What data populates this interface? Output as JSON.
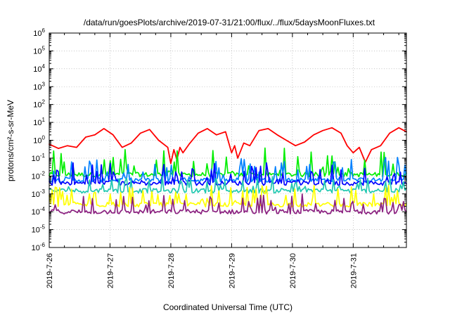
{
  "chart_data": {
    "type": "line",
    "title": "/data/run/goesPlots/archive/2019-07-31/21:00/flux/../flux/5daysMoonFluxes.txt",
    "xlabel": "Coordinated Universal Time (UTC)",
    "ylabel": "protons/cm²-s-sr-MeV",
    "yscale": "log",
    "ylim": [
      1e-06,
      1000000.0
    ],
    "xlim": [
      "2019-07-26 00:00",
      "2019-07-31 21:00"
    ],
    "grid": true,
    "ytick_labels": [
      {
        "base": "10",
        "exp": "-6"
      },
      {
        "base": "10",
        "exp": "-5"
      },
      {
        "base": "10",
        "exp": "-4"
      },
      {
        "base": "10",
        "exp": "-3"
      },
      {
        "base": "10",
        "exp": "-2"
      },
      {
        "base": "10",
        "exp": "-1"
      },
      {
        "base": "10",
        "exp": "0"
      },
      {
        "base": "10",
        "exp": "1"
      },
      {
        "base": "10",
        "exp": "2"
      },
      {
        "base": "10",
        "exp": "3"
      },
      {
        "base": "10",
        "exp": "4"
      },
      {
        "base": "10",
        "exp": "5"
      },
      {
        "base": "10",
        "exp": "6"
      }
    ],
    "xtick_labels": [
      "2019-7-26",
      "2019-7-27",
      "2019-7-28",
      "2019-7-29",
      "2019-7-30",
      "2019-7-31"
    ],
    "series": [
      {
        "color": "#ff0000",
        "x": [
          0,
          0.15,
          0.3,
          0.45,
          0.6,
          0.75,
          0.9,
          1.05,
          1.2,
          1.35,
          1.5,
          1.65,
          1.8,
          1.95,
          2.0,
          2.05,
          2.1,
          2.15,
          2.2,
          2.3,
          2.45,
          2.6,
          2.75,
          2.9,
          3.0,
          3.05,
          3.1,
          3.2,
          3.3,
          3.45,
          3.6,
          3.75,
          3.9,
          4.05,
          4.2,
          4.35,
          4.5,
          4.65,
          4.8,
          4.9,
          5.0,
          5.1,
          5.2,
          5.3,
          5.45,
          5.6,
          5.75,
          5.875
        ],
        "y": [
          0.6,
          0.35,
          0.5,
          0.4,
          1.5,
          2.0,
          4.5,
          2.0,
          0.4,
          0.7,
          2.5,
          4.0,
          1.0,
          0.4,
          0.05,
          0.3,
          0.08,
          0.4,
          0.2,
          0.6,
          2.5,
          4.5,
          2.0,
          3.0,
          0.2,
          0.5,
          0.1,
          0.7,
          0.5,
          3.5,
          4.5,
          2.0,
          1.0,
          0.5,
          0.8,
          2.0,
          3.5,
          5.0,
          2.5,
          0.5,
          0.2,
          0.4,
          0.06,
          0.3,
          0.5,
          2.5,
          5.0,
          3.0
        ]
      },
      {
        "color": "#00ee00",
        "base": 0.012,
        "spread": 1.5
      },
      {
        "color": "#0080ff",
        "base": 0.006,
        "spread": 1.3
      },
      {
        "color": "#0000ff",
        "base": 0.004,
        "spread": 1.2
      },
      {
        "color": "#20c8b0",
        "base": 0.0015,
        "spread": 0.8
      },
      {
        "color": "#ffff00",
        "base": 0.00025,
        "spread": 1.1
      },
      {
        "color": "#8b2080",
        "base": 0.0001,
        "spread": 1.0
      }
    ]
  }
}
